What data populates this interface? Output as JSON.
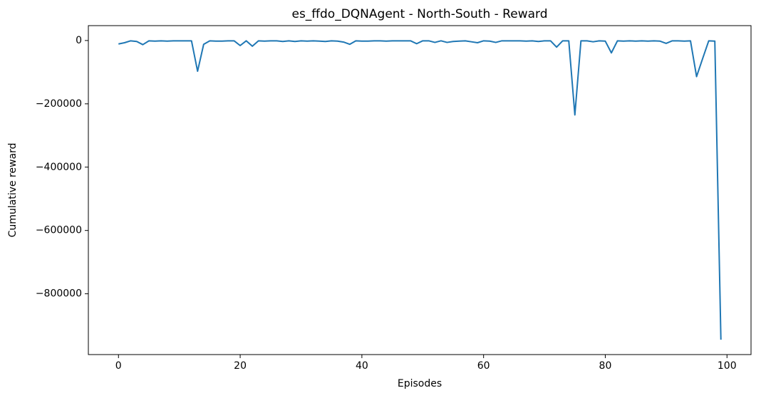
{
  "chart_data": {
    "type": "line",
    "title": "es_ffdo_DQNAgent - North-South - Reward",
    "x_label": "Episodes",
    "y_label": "Cumulative reward",
    "color": "#1f77b4",
    "grid": false,
    "x": [
      0,
      1,
      2,
      3,
      4,
      5,
      6,
      7,
      8,
      9,
      10,
      11,
      12,
      13,
      14,
      15,
      16,
      17,
      18,
      19,
      20,
      21,
      22,
      23,
      24,
      25,
      26,
      27,
      28,
      29,
      30,
      31,
      32,
      33,
      34,
      35,
      36,
      37,
      38,
      39,
      40,
      41,
      42,
      43,
      44,
      45,
      46,
      47,
      48,
      49,
      50,
      51,
      52,
      53,
      54,
      55,
      56,
      57,
      58,
      59,
      60,
      61,
      62,
      63,
      64,
      65,
      66,
      67,
      68,
      69,
      70,
      71,
      72,
      73,
      74,
      75,
      76,
      77,
      78,
      79,
      80,
      81,
      82,
      83,
      84,
      85,
      86,
      87,
      88,
      89,
      90,
      91,
      92,
      93,
      94,
      95,
      96,
      97,
      98,
      99
    ],
    "values": [
      -11000,
      -7000,
      -1000,
      -3000,
      -13000,
      -1000,
      -2000,
      -1000,
      -2000,
      -1000,
      -1000,
      -1000,
      -1000,
      -97000,
      -12000,
      -1000,
      -2000,
      -2000,
      -1000,
      -1000,
      -16000,
      -1000,
      -18000,
      -1000,
      -2000,
      -1000,
      -1000,
      -3000,
      -1000,
      -3000,
      -1000,
      -2000,
      -1000,
      -2000,
      -3000,
      -1000,
      -2000,
      -5000,
      -12000,
      -1000,
      -2000,
      -2000,
      -1000,
      -1000,
      -2000,
      -1000,
      -1000,
      -1000,
      -1000,
      -10000,
      -1000,
      -1000,
      -6000,
      -1000,
      -6000,
      -3000,
      -2000,
      -1000,
      -4000,
      -7000,
      -1000,
      -2000,
      -6000,
      -1000,
      -1000,
      -1000,
      -1000,
      -2000,
      -1000,
      -3000,
      -1000,
      -1000,
      -21000,
      -1000,
      -1000,
      -235000,
      -1000,
      -1000,
      -4000,
      -1000,
      -2000,
      -39000,
      -1000,
      -2000,
      -1000,
      -2000,
      -1000,
      -2000,
      -1000,
      -2000,
      -9000,
      -1000,
      -1000,
      -2000,
      -1000,
      -114000,
      -57000,
      -1000,
      -2000,
      -945000
    ],
    "xlim": [
      -4.95,
      103.95
    ],
    "ylim": [
      -992000,
      47000
    ],
    "xticks": [
      0,
      20,
      40,
      60,
      80,
      100
    ],
    "yticks": [
      {
        "value": -800000,
        "label": "−800000"
      },
      {
        "value": -600000,
        "label": "−600000"
      },
      {
        "value": -400000,
        "label": "−400000"
      },
      {
        "value": -200000,
        "label": "−200000"
      },
      0
    ]
  }
}
